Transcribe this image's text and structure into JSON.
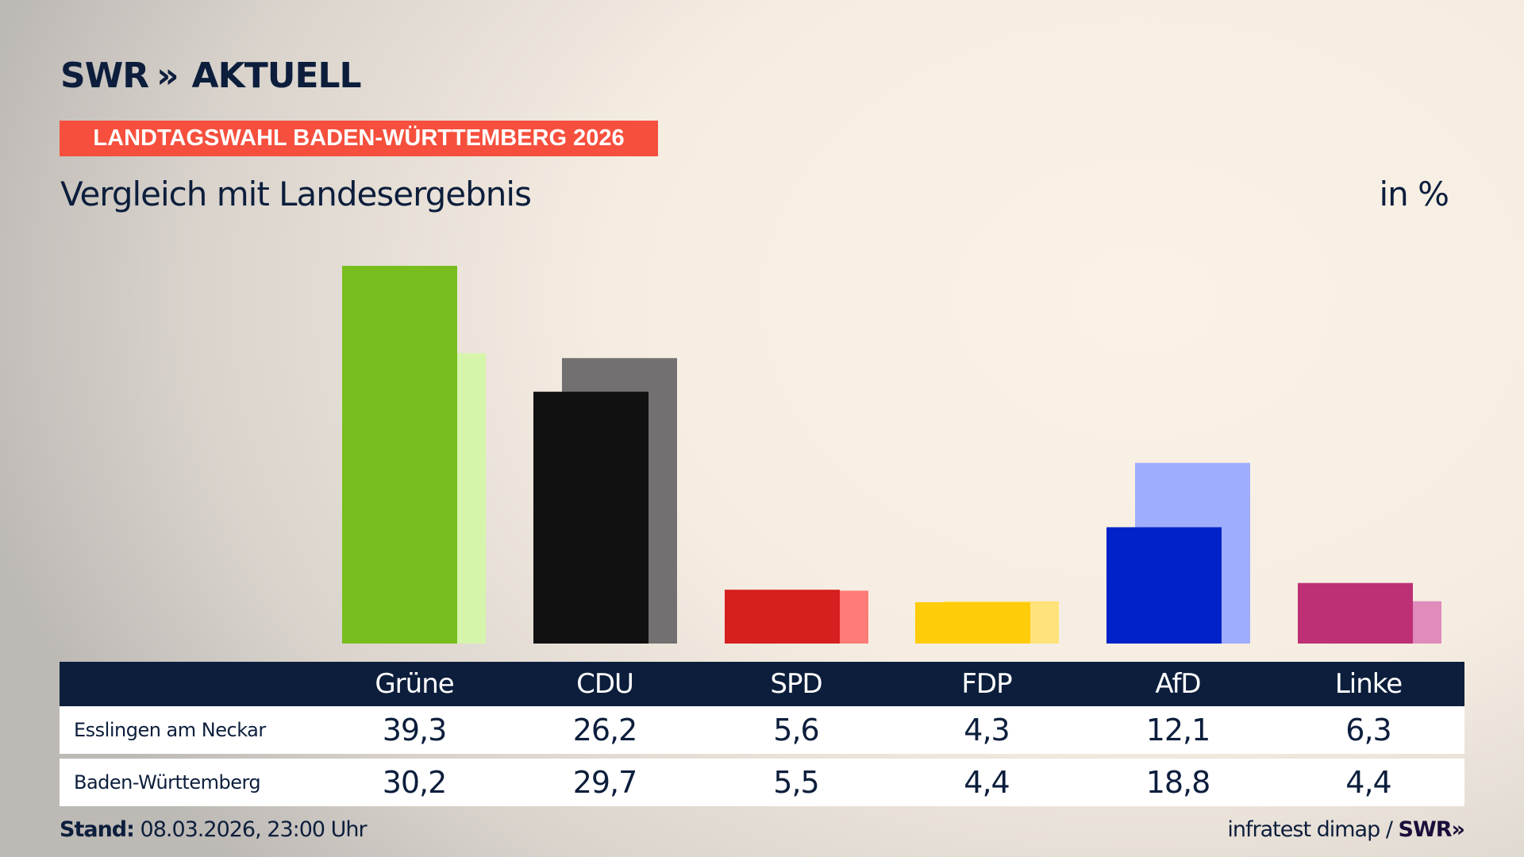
{
  "brand": {
    "logo": "SWR AKTUELL",
    "logo_swr": "SWR",
    "logo_chevrons": "»",
    "logo_aktuell": "AKTUELL"
  },
  "banner": "LANDTAGSWAHL BADEN-WÜRTTEMBERG 2026",
  "subtitle": "Vergleich mit Landesergebnis",
  "unit": "in %",
  "chart_data": {
    "type": "bar",
    "categories": [
      "Grüne",
      "CDU",
      "SPD",
      "FDP",
      "AfD",
      "Linke"
    ],
    "series": [
      {
        "name": "Esslingen am Neckar",
        "values": [
          39.3,
          26.2,
          5.6,
          4.3,
          12.1,
          6.3
        ]
      },
      {
        "name": "Baden-Württemberg",
        "values": [
          30.2,
          29.7,
          5.5,
          4.4,
          18.8,
          4.4
        ]
      }
    ],
    "colors": {
      "primary": [
        "#78bd1e",
        "#111111",
        "#d61f1f",
        "#ffcc0a",
        "#0022c8",
        "#bd3075"
      ],
      "secondary": [
        "#d6f5ac",
        "#727070",
        "#ff7b78",
        "#ffe27a",
        "#9fadff",
        "#df8bbb"
      ]
    },
    "ylim": [
      0,
      40
    ],
    "grid": false
  },
  "table": {
    "headers": [
      "Grüne",
      "CDU",
      "SPD",
      "FDP",
      "AfD",
      "Linke"
    ],
    "rows": [
      {
        "label": "Esslingen am Neckar",
        "values": [
          "39,3",
          "26,2",
          "5,6",
          "4,3",
          "12,1",
          "6,3"
        ]
      },
      {
        "label": "Baden-Württemberg",
        "values": [
          "30,2",
          "29,7",
          "5,5",
          "4,4",
          "18,8",
          "4,4"
        ]
      }
    ]
  },
  "footer": {
    "stand_label": "Stand:",
    "stand_value": "08.03.2026, 23:00 Uhr",
    "source": "infratest dimap /",
    "source_brand": "SWR»"
  }
}
